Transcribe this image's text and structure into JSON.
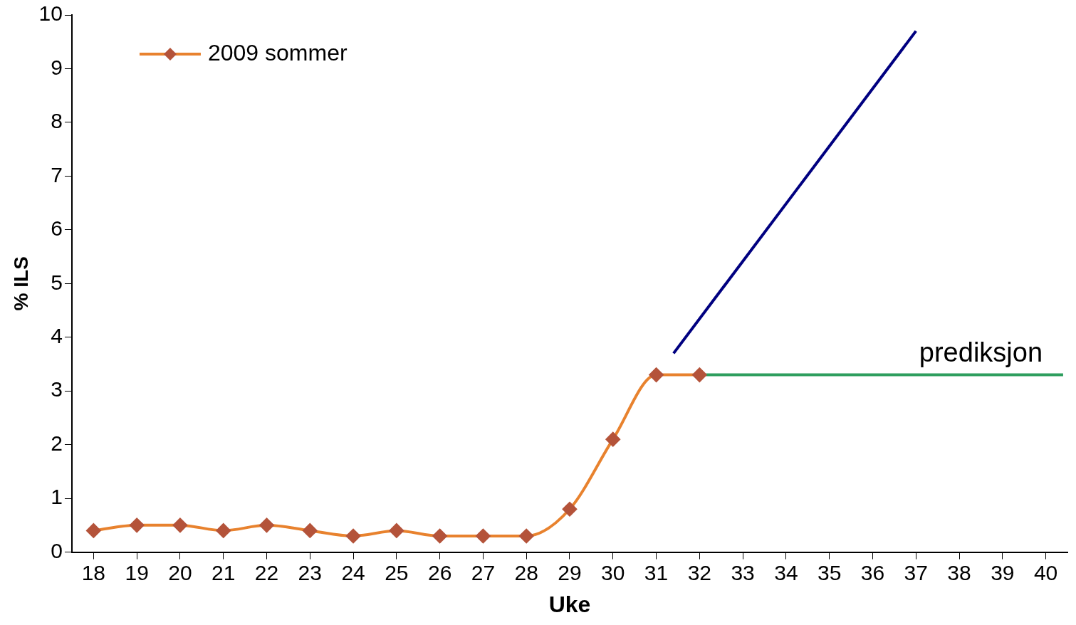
{
  "chart_data": {
    "type": "line",
    "xlabel": "Uke",
    "ylabel": "% ILS",
    "xlim": [
      17.5,
      40.5
    ],
    "xticks": [
      18,
      19,
      20,
      21,
      22,
      23,
      24,
      25,
      26,
      27,
      28,
      29,
      30,
      31,
      32,
      33,
      34,
      35,
      36,
      37,
      38,
      39,
      40
    ],
    "ylim": [
      0,
      10
    ],
    "yticks": [
      0,
      1,
      2,
      3,
      4,
      5,
      6,
      7,
      8,
      9,
      10
    ],
    "grid": false,
    "legend": "top left",
    "series": [
      {
        "name": "2009 sommer",
        "color": "#e8822e",
        "marker": "diamond",
        "x": [
          18,
          19,
          20,
          21,
          22,
          23,
          24,
          25,
          26,
          27,
          28,
          29,
          30,
          31,
          32
        ],
        "values": [
          0.4,
          0.5,
          0.5,
          0.4,
          0.5,
          0.4,
          0.3,
          0.4,
          0.3,
          0.3,
          0.3,
          0.8,
          2.1,
          3.3,
          3.3
        ]
      },
      {
        "color": "#000080",
        "marker": "none",
        "x": [
          31.4,
          37.0
        ],
        "values": [
          3.7,
          9.7
        ]
      },
      {
        "color": "#2e9e5e",
        "marker": "none",
        "x": [
          32.15,
          40.4
        ],
        "values": [
          3.3,
          3.3
        ]
      }
    ],
    "annotations": [
      {
        "text": "prediksjon",
        "x": 38.5,
        "y": 3.3
      }
    ]
  }
}
